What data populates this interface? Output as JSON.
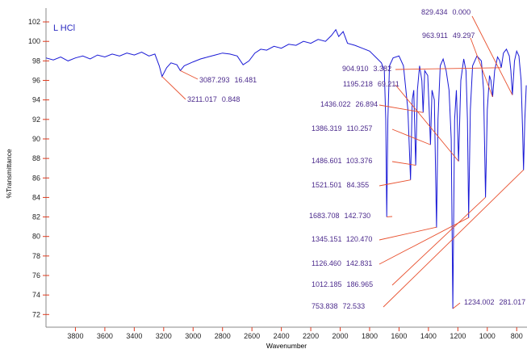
{
  "chart_data": {
    "type": "line",
    "title": "L HCl",
    "x_label": "Wavenumber",
    "y_label": "%Transmittance",
    "xlim": [
      4000,
      730
    ],
    "ylim": [
      70.7,
      103
    ],
    "xticks": [
      3800,
      3600,
      3400,
      3200,
      3000,
      2800,
      2600,
      2400,
      2200,
      2000,
      1800,
      1600,
      1400,
      1200,
      1000,
      800
    ],
    "yticks": [
      72,
      74,
      76,
      78,
      80,
      82,
      84,
      86,
      88,
      90,
      92,
      94,
      96,
      98,
      100,
      102
    ],
    "x": [
      4000,
      3950,
      3900,
      3850,
      3800,
      3750,
      3700,
      3650,
      3600,
      3550,
      3500,
      3450,
      3400,
      3350,
      3300,
      3260,
      3230,
      3211,
      3180,
      3150,
      3110,
      3087,
      3060,
      3000,
      2950,
      2900,
      2850,
      2800,
      2750,
      2700,
      2660,
      2620,
      2580,
      2540,
      2500,
      2450,
      2400,
      2350,
      2300,
      2250,
      2200,
      2150,
      2100,
      2060,
      2030,
      2010,
      1980,
      1950,
      1900,
      1850,
      1800,
      1760,
      1720,
      1700,
      1690,
      1683.7,
      1676,
      1665,
      1640,
      1600,
      1570,
      1540,
      1521.5,
      1510,
      1500,
      1486.6,
      1475,
      1460,
      1445,
      1436,
      1425,
      1405,
      1395,
      1386.3,
      1376,
      1360,
      1345.2,
      1335,
      1320,
      1300,
      1280,
      1260,
      1245,
      1234,
      1222,
      1210,
      1195.2,
      1180,
      1160,
      1145,
      1135,
      1126.5,
      1115,
      1100,
      1070,
      1040,
      1025,
      1012.2,
      1000,
      985,
      975,
      963.9,
      950,
      930,
      915,
      904.9,
      890,
      870,
      850,
      840,
      829.4,
      815,
      800,
      785,
      770,
      760,
      753.8,
      745,
      735
    ],
    "series": [
      {
        "name": "L HCl",
        "color": "#1a1ad6",
        "values": [
          98.3,
          98.1,
          98.4,
          98.0,
          98.3,
          98.5,
          98.2,
          98.6,
          98.4,
          98.7,
          98.5,
          98.8,
          98.6,
          98.9,
          98.5,
          98.7,
          97.5,
          96.4,
          97.3,
          97.8,
          97.6,
          97.0,
          97.5,
          97.9,
          98.2,
          98.4,
          98.6,
          98.8,
          98.7,
          98.5,
          97.6,
          98.0,
          98.8,
          99.2,
          99.1,
          99.5,
          99.3,
          99.7,
          99.6,
          100.0,
          99.8,
          100.2,
          100.0,
          100.6,
          101.2,
          100.5,
          101.0,
          99.8,
          99.6,
          99.3,
          99.0,
          98.4,
          97.8,
          97.0,
          92,
          82.0,
          92,
          97.5,
          98.3,
          98.5,
          97.5,
          93,
          85.8,
          94,
          95,
          87.3,
          95,
          97.5,
          96,
          92.7,
          97,
          96.5,
          93,
          89.4,
          95,
          94,
          80.9,
          92,
          97.5,
          98.2,
          97,
          95,
          90,
          72.6,
          92,
          95,
          87.7,
          96,
          98.2,
          97,
          92,
          81.9,
          93,
          97.5,
          98.5,
          98,
          95,
          84.0,
          93,
          96.5,
          96,
          94.3,
          97,
          98.4,
          98,
          97.3,
          98.8,
          99.2,
          98.5,
          97,
          94.5,
          98,
          99.0,
          98.5,
          96,
          91,
          86.8,
          92,
          95.5
        ]
      }
    ],
    "annotations": [
      {
        "x": 829.434,
        "x_label": "829.434",
        "value": 0.0,
        "value_label": "0.000"
      },
      {
        "x": 963.911,
        "x_label": "963.911",
        "value": 49.297,
        "value_label": "49.297"
      },
      {
        "x": 904.91,
        "x_label": "904.910",
        "value": 3.382,
        "value_label": "3.382"
      },
      {
        "x": 1195.218,
        "x_label": "1195.218",
        "value": 69.211,
        "value_label": "69.211"
      },
      {
        "x": 1436.022,
        "x_label": "1436.022",
        "value": 26.894,
        "value_label": "26.894"
      },
      {
        "x": 1386.319,
        "x_label": "1386.319",
        "value": 110.257,
        "value_label": "110.257"
      },
      {
        "x": 1486.601,
        "x_label": "1486.601",
        "value": 103.376,
        "value_label": "103.376"
      },
      {
        "x": 1521.501,
        "x_label": "1521.501",
        "value": 84.355,
        "value_label": "84.355"
      },
      {
        "x": 1683.708,
        "x_label": "1683.708",
        "value": 142.73,
        "value_label": "142.730"
      },
      {
        "x": 1345.151,
        "x_label": "1345.151",
        "value": 120.47,
        "value_label": "120.470"
      },
      {
        "x": 1126.46,
        "x_label": "1126.460",
        "value": 142.831,
        "value_label": "142.831"
      },
      {
        "x": 1012.185,
        "x_label": "1012.185",
        "value": 186.965,
        "value_label": "186.965"
      },
      {
        "x": 753.838,
        "x_label": "753.838",
        "value": 72.533,
        "value_label": "72.533"
      },
      {
        "x": 1234.002,
        "x_label": "1234.002",
        "value": 281.017,
        "value_label": "281.017"
      },
      {
        "x": 3087.293,
        "x_label": "3087.293",
        "value": 16.481,
        "value_label": "16.481"
      },
      {
        "x": 3211.017,
        "x_label": "3211.017",
        "value": 0.848,
        "value_label": "0.848"
      }
    ]
  }
}
